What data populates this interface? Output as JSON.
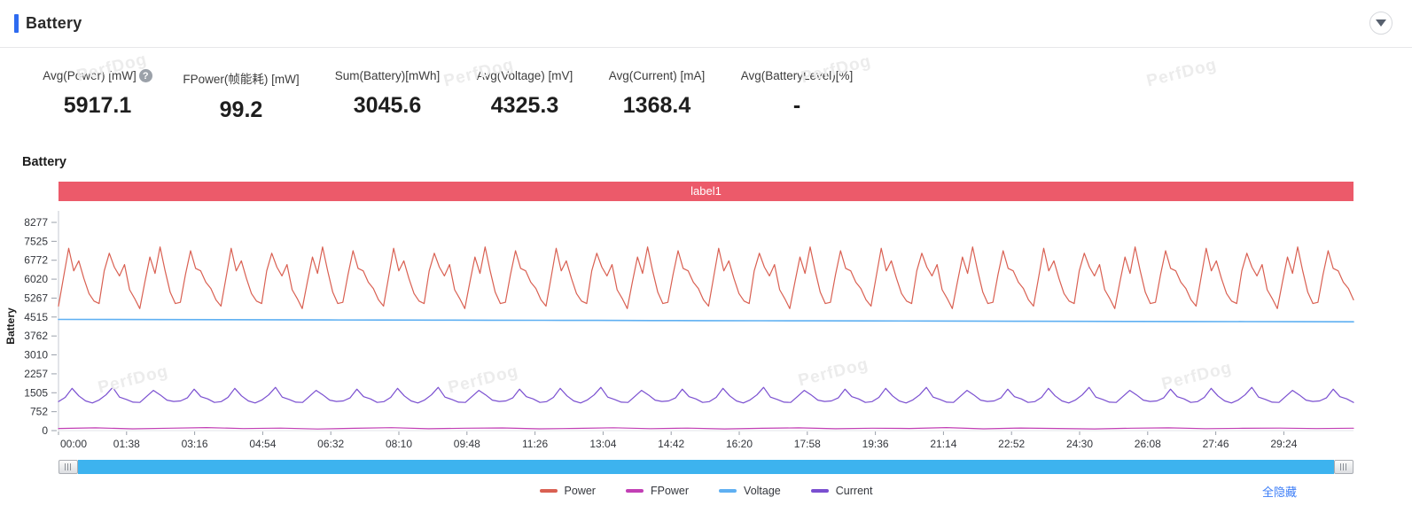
{
  "header": {
    "title": "Battery"
  },
  "colors": {
    "accent_blue": "#2e6bf0",
    "banner": "#ec5a6a",
    "scrollbar": "#3db3ef",
    "link": "#3d7ef7"
  },
  "watermark": {
    "text": "PerfDog"
  },
  "stats": {
    "items": [
      {
        "label": "Avg(Power) [mW]",
        "value": "5917.1"
      },
      {
        "label": "FPower(帧能耗) [mW]",
        "value": "99.2"
      },
      {
        "label": "Sum(Battery)[mWh]",
        "value": "3045.6"
      },
      {
        "label": "Avg(Voltage) [mV]",
        "value": "4325.3"
      },
      {
        "label": "Avg(Current) [mA]",
        "value": "1368.4"
      },
      {
        "label": "Avg(BatteryLevel)[%]",
        "value": "-"
      }
    ],
    "help_glyph": "?"
  },
  "section": {
    "title": "Battery",
    "banner_label": "label1"
  },
  "legend": {
    "hide_all": "全隐藏"
  },
  "chart_data": {
    "type": "line",
    "title": "Battery",
    "xlabel": "",
    "ylabel": "Battery",
    "ylim": [
      0,
      8277
    ],
    "grid": false,
    "legend_position": "bottom",
    "y_ticks": [
      0,
      752,
      1505,
      2257,
      3010,
      3762,
      4515,
      5267,
      6020,
      6772,
      7525,
      8277
    ],
    "x_ticks": [
      "00:00",
      "01:38",
      "03:16",
      "04:54",
      "06:32",
      "08:10",
      "09:48",
      "11:26",
      "13:04",
      "14:42",
      "16:20",
      "17:58",
      "19:36",
      "21:14",
      "22:52",
      "24:30",
      "26:08",
      "27:46",
      "29:24"
    ],
    "series": [
      {
        "name": "Power",
        "color": "#d96052",
        "width": 1.2,
        "approx_avg": 5917.1,
        "values": [
          4950,
          6100,
          7250,
          6350,
          6750,
          6050,
          5450,
          5150,
          5050,
          6350,
          7050,
          6500,
          6150,
          6600,
          5600,
          5250,
          4850,
          5900,
          6900,
          6250,
          7300,
          6350,
          5500,
          5050,
          5100,
          6200,
          7150,
          6450,
          6350,
          5900,
          5650,
          5200,
          4950,
          6100,
          7250,
          6350,
          6750,
          6050,
          5450,
          5150,
          5050,
          6350,
          7050,
          6500,
          6150,
          6600,
          5600,
          5250,
          4850,
          5900,
          6900,
          6250,
          7300,
          6350,
          5500,
          5050,
          5100,
          6200,
          7150,
          6450,
          6350,
          5900,
          5650,
          5200,
          4950,
          6100,
          7250,
          6350,
          6750,
          6050,
          5450,
          5150,
          5050,
          6350,
          7050,
          6500,
          6150,
          6600,
          5600,
          5250,
          4850,
          5900,
          6900,
          6250,
          7300,
          6350,
          5500,
          5050,
          5100,
          6200,
          7150,
          6450,
          6350,
          5900,
          5650,
          5200,
          4950,
          6100,
          7250,
          6350,
          6750,
          6050,
          5450,
          5150,
          5050,
          6350,
          7050,
          6500,
          6150,
          6600,
          5600,
          5250,
          4850,
          5900,
          6900,
          6250,
          7300,
          6350,
          5500,
          5050,
          5100,
          6200,
          7150,
          6450,
          6350,
          5900,
          5650,
          5200,
          4950,
          6100,
          7250,
          6350,
          6750,
          6050,
          5450,
          5150,
          5050,
          6350,
          7050,
          6500,
          6150,
          6600,
          5600,
          5250,
          4850,
          5900,
          6900,
          6250,
          7300,
          6350,
          5500,
          5050,
          5100,
          6200,
          7150,
          6450,
          6350,
          5900,
          5650,
          5200,
          4950,
          6100,
          7250,
          6350,
          6750,
          6050,
          5450,
          5150,
          5050,
          6350,
          7050,
          6500,
          6150,
          6600,
          5600,
          5250,
          4850,
          5900,
          6900,
          6250,
          7300,
          6350,
          5500,
          5050,
          5100,
          6200,
          7150,
          6450,
          6350,
          5900,
          5650,
          5200,
          4950,
          6100,
          7250,
          6350,
          6750,
          6050,
          5450,
          5150,
          5050,
          6350,
          7050,
          6500,
          6150,
          6600,
          5600,
          5250,
          4850,
          5900,
          6900,
          6250,
          7300,
          6350,
          5500,
          5050,
          5100,
          6200,
          7150,
          6450,
          6350,
          5900,
          5650,
          5200,
          4950,
          6100,
          7250,
          6350,
          6750,
          6050,
          5450,
          5150,
          5050,
          6350,
          7050,
          6500,
          6150,
          6600,
          5600,
          5250,
          4850,
          5900,
          6900,
          6250,
          7300,
          6350,
          5500,
          5050,
          5100,
          6200,
          7150,
          6450,
          6350,
          5900,
          5650,
          5200
        ]
      },
      {
        "name": "FPower",
        "color": "#c23fb5",
        "width": 1.2,
        "approx_avg": 99.2,
        "values": [
          85,
          110,
          70,
          95,
          120,
          80,
          100,
          65,
          90,
          115,
          75,
          95,
          105,
          70,
          88,
          112,
          78,
          98,
          68,
          92,
          108,
          74,
          96,
          84,
          118,
          72,
          102,
          86,
          66,
          94,
          110,
          76,
          90,
          100,
          80,
          95
        ]
      },
      {
        "name": "Voltage",
        "color": "#5fb0f2",
        "width": 1.6,
        "approx_avg": 4325.3,
        "values": [
          4420,
          4415,
          4412,
          4408,
          4405,
          4400,
          4396,
          4392,
          4388,
          4384,
          4380,
          4376,
          4372,
          4368,
          4364,
          4360,
          4356,
          4352,
          4348,
          4344,
          4340,
          4336,
          4332,
          4328,
          4325
        ]
      },
      {
        "name": "Current",
        "color": "#7a4fd0",
        "width": 1.2,
        "approx_avg": 1368.4,
        "values": [
          1150,
          1320,
          1680,
          1380,
          1180,
          1100,
          1220,
          1420,
          1720,
          1330,
          1240,
          1130,
          1120,
          1360,
          1600,
          1420,
          1210,
          1160,
          1180,
          1300,
          1650,
          1350,
          1260,
          1120,
          1150,
          1320,
          1680,
          1380,
          1180,
          1100,
          1220,
          1420,
          1720,
          1330,
          1240,
          1130,
          1120,
          1360,
          1600,
          1420,
          1210,
          1160,
          1180,
          1300,
          1650,
          1350,
          1260,
          1120,
          1150,
          1320,
          1680,
          1380,
          1180,
          1100,
          1220,
          1420,
          1720,
          1330,
          1240,
          1130,
          1120,
          1360,
          1600,
          1420,
          1210,
          1160,
          1180,
          1300,
          1650,
          1350,
          1260,
          1120,
          1150,
          1320,
          1680,
          1380,
          1180,
          1100,
          1220,
          1420,
          1720,
          1330,
          1240,
          1130,
          1120,
          1360,
          1600,
          1420,
          1210,
          1160,
          1180,
          1300,
          1650,
          1350,
          1260,
          1120,
          1150,
          1320,
          1680,
          1380,
          1180,
          1100,
          1220,
          1420,
          1720,
          1330,
          1240,
          1130,
          1120,
          1360,
          1600,
          1420,
          1210,
          1160,
          1180,
          1300,
          1650,
          1350,
          1260,
          1120,
          1150,
          1320,
          1680,
          1380,
          1180,
          1100,
          1220,
          1420,
          1720,
          1330,
          1240,
          1130,
          1120,
          1360,
          1600,
          1420,
          1210,
          1160,
          1180,
          1300,
          1650,
          1350,
          1260,
          1120,
          1150,
          1320,
          1680,
          1380,
          1180,
          1100,
          1220,
          1420,
          1720,
          1330,
          1240,
          1130,
          1120,
          1360,
          1600,
          1420,
          1210,
          1160,
          1180,
          1300,
          1650,
          1350,
          1260,
          1120,
          1150,
          1320,
          1680,
          1380,
          1180,
          1100,
          1220,
          1420,
          1720,
          1330,
          1240,
          1130,
          1120,
          1360,
          1600,
          1420,
          1210,
          1160,
          1180,
          1300,
          1650,
          1350,
          1260,
          1120
        ]
      }
    ]
  }
}
